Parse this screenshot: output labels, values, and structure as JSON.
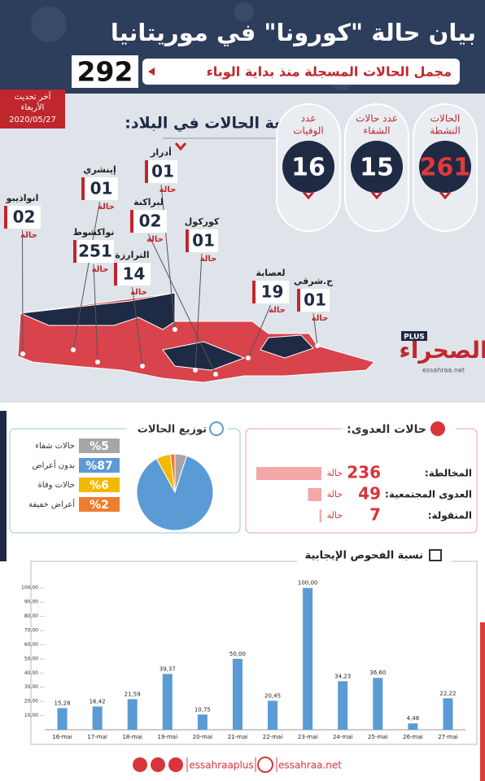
{
  "header": {
    "title": "بيان حالة \"كورونا\" في موريتانيا",
    "subtitle": "مجمل الحالات المسجلة منذ بداية الوباء",
    "total": 292
  },
  "update": {
    "label": "آخر تحديث",
    "day": "الأربعاء",
    "date": "2020/05/27"
  },
  "map": {
    "title": "توزيعة الحالات في البلاد:",
    "unit": "حالة",
    "regions": [
      {
        "name": "انواذيبو",
        "count": "02"
      },
      {
        "name": "إينشري",
        "count": "01"
      },
      {
        "name": "أدرار",
        "count": "01"
      },
      {
        "name": "نواكشوط",
        "count": "251"
      },
      {
        "name": "لبراكنة",
        "count": "02"
      },
      {
        "name": "كوركول",
        "count": "01"
      },
      {
        "name": "الترارزة",
        "count": "14"
      },
      {
        "name": "لعصابة",
        "count": "19"
      },
      {
        "name": "ج.شرقي",
        "count": "01"
      }
    ]
  },
  "stats": [
    {
      "label": [
        "الحالات",
        "النشطة"
      ],
      "value": 261
    },
    {
      "label": [
        "عدد حالات",
        "الشفاء"
      ],
      "value": 15
    },
    {
      "label": [
        "عدد",
        "الوفيات"
      ],
      "value": 16
    }
  ],
  "logo": {
    "name": "الصحراء",
    "badge": "PLUS",
    "site": "essahraa.net"
  },
  "footer": {
    "handle": "essahraaplus",
    "site": "essahraa.net"
  },
  "chart_data": [
    {
      "type": "hbar",
      "title": "حالات العدوى:",
      "categories": [
        "المخالطة:",
        "العدوى المجتمعية:",
        "المنقولة:"
      ],
      "values": [
        236,
        49,
        7
      ],
      "unit": "حالة",
      "color": "#f4a7a7"
    },
    {
      "type": "pie",
      "title": "توزيع الحالات",
      "categories": [
        "حالات شفاء",
        "بدون أعراض",
        "حالات وفاة",
        "أعراض خفيفة"
      ],
      "values": [
        5,
        87,
        6,
        2
      ],
      "value_labels": [
        "%5",
        "%87",
        "%6",
        "%2"
      ],
      "colors": [
        "#a6a6a6",
        "#5b9bd5",
        "#f5b800",
        "#ed7d31"
      ]
    },
    {
      "type": "bar",
      "title": "نسبة الفحوص الإيجابية",
      "categories": [
        "16-mai",
        "17-mai",
        "18-mai",
        "19-mai",
        "20-mai",
        "21-mai",
        "22-mai",
        "23-mai",
        "24-mai",
        "25-mai",
        "26-mai",
        "27-mai"
      ],
      "values": [
        15.28,
        16.42,
        21.59,
        39.37,
        10.75,
        50.0,
        20.45,
        100.0,
        34.23,
        36.6,
        4.48,
        22.22
      ],
      "value_labels": [
        "15,28",
        "16,42",
        "21,59",
        "39,37",
        "10,75",
        "50,00",
        "20,45",
        "100,00",
        "34,23",
        "36,60",
        "4,48",
        "22,22"
      ],
      "color": "#5b9bd5",
      "ylim": [
        0,
        105
      ],
      "yticks": [
        {
          "value": 10,
          "label": "10,00"
        },
        {
          "value": 20,
          "label": "20,00"
        },
        {
          "value": 30,
          "label": "30,00"
        },
        {
          "value": 40,
          "label": "40,00"
        },
        {
          "value": 50,
          "label": "50,00"
        },
        {
          "value": 60,
          "label": "60,00"
        },
        {
          "value": 70,
          "label": "70,00"
        },
        {
          "value": 80,
          "label": "80,00"
        },
        {
          "value": 90,
          "label": "90,00"
        },
        {
          "value": 100,
          "label": "100,00"
        }
      ]
    }
  ]
}
